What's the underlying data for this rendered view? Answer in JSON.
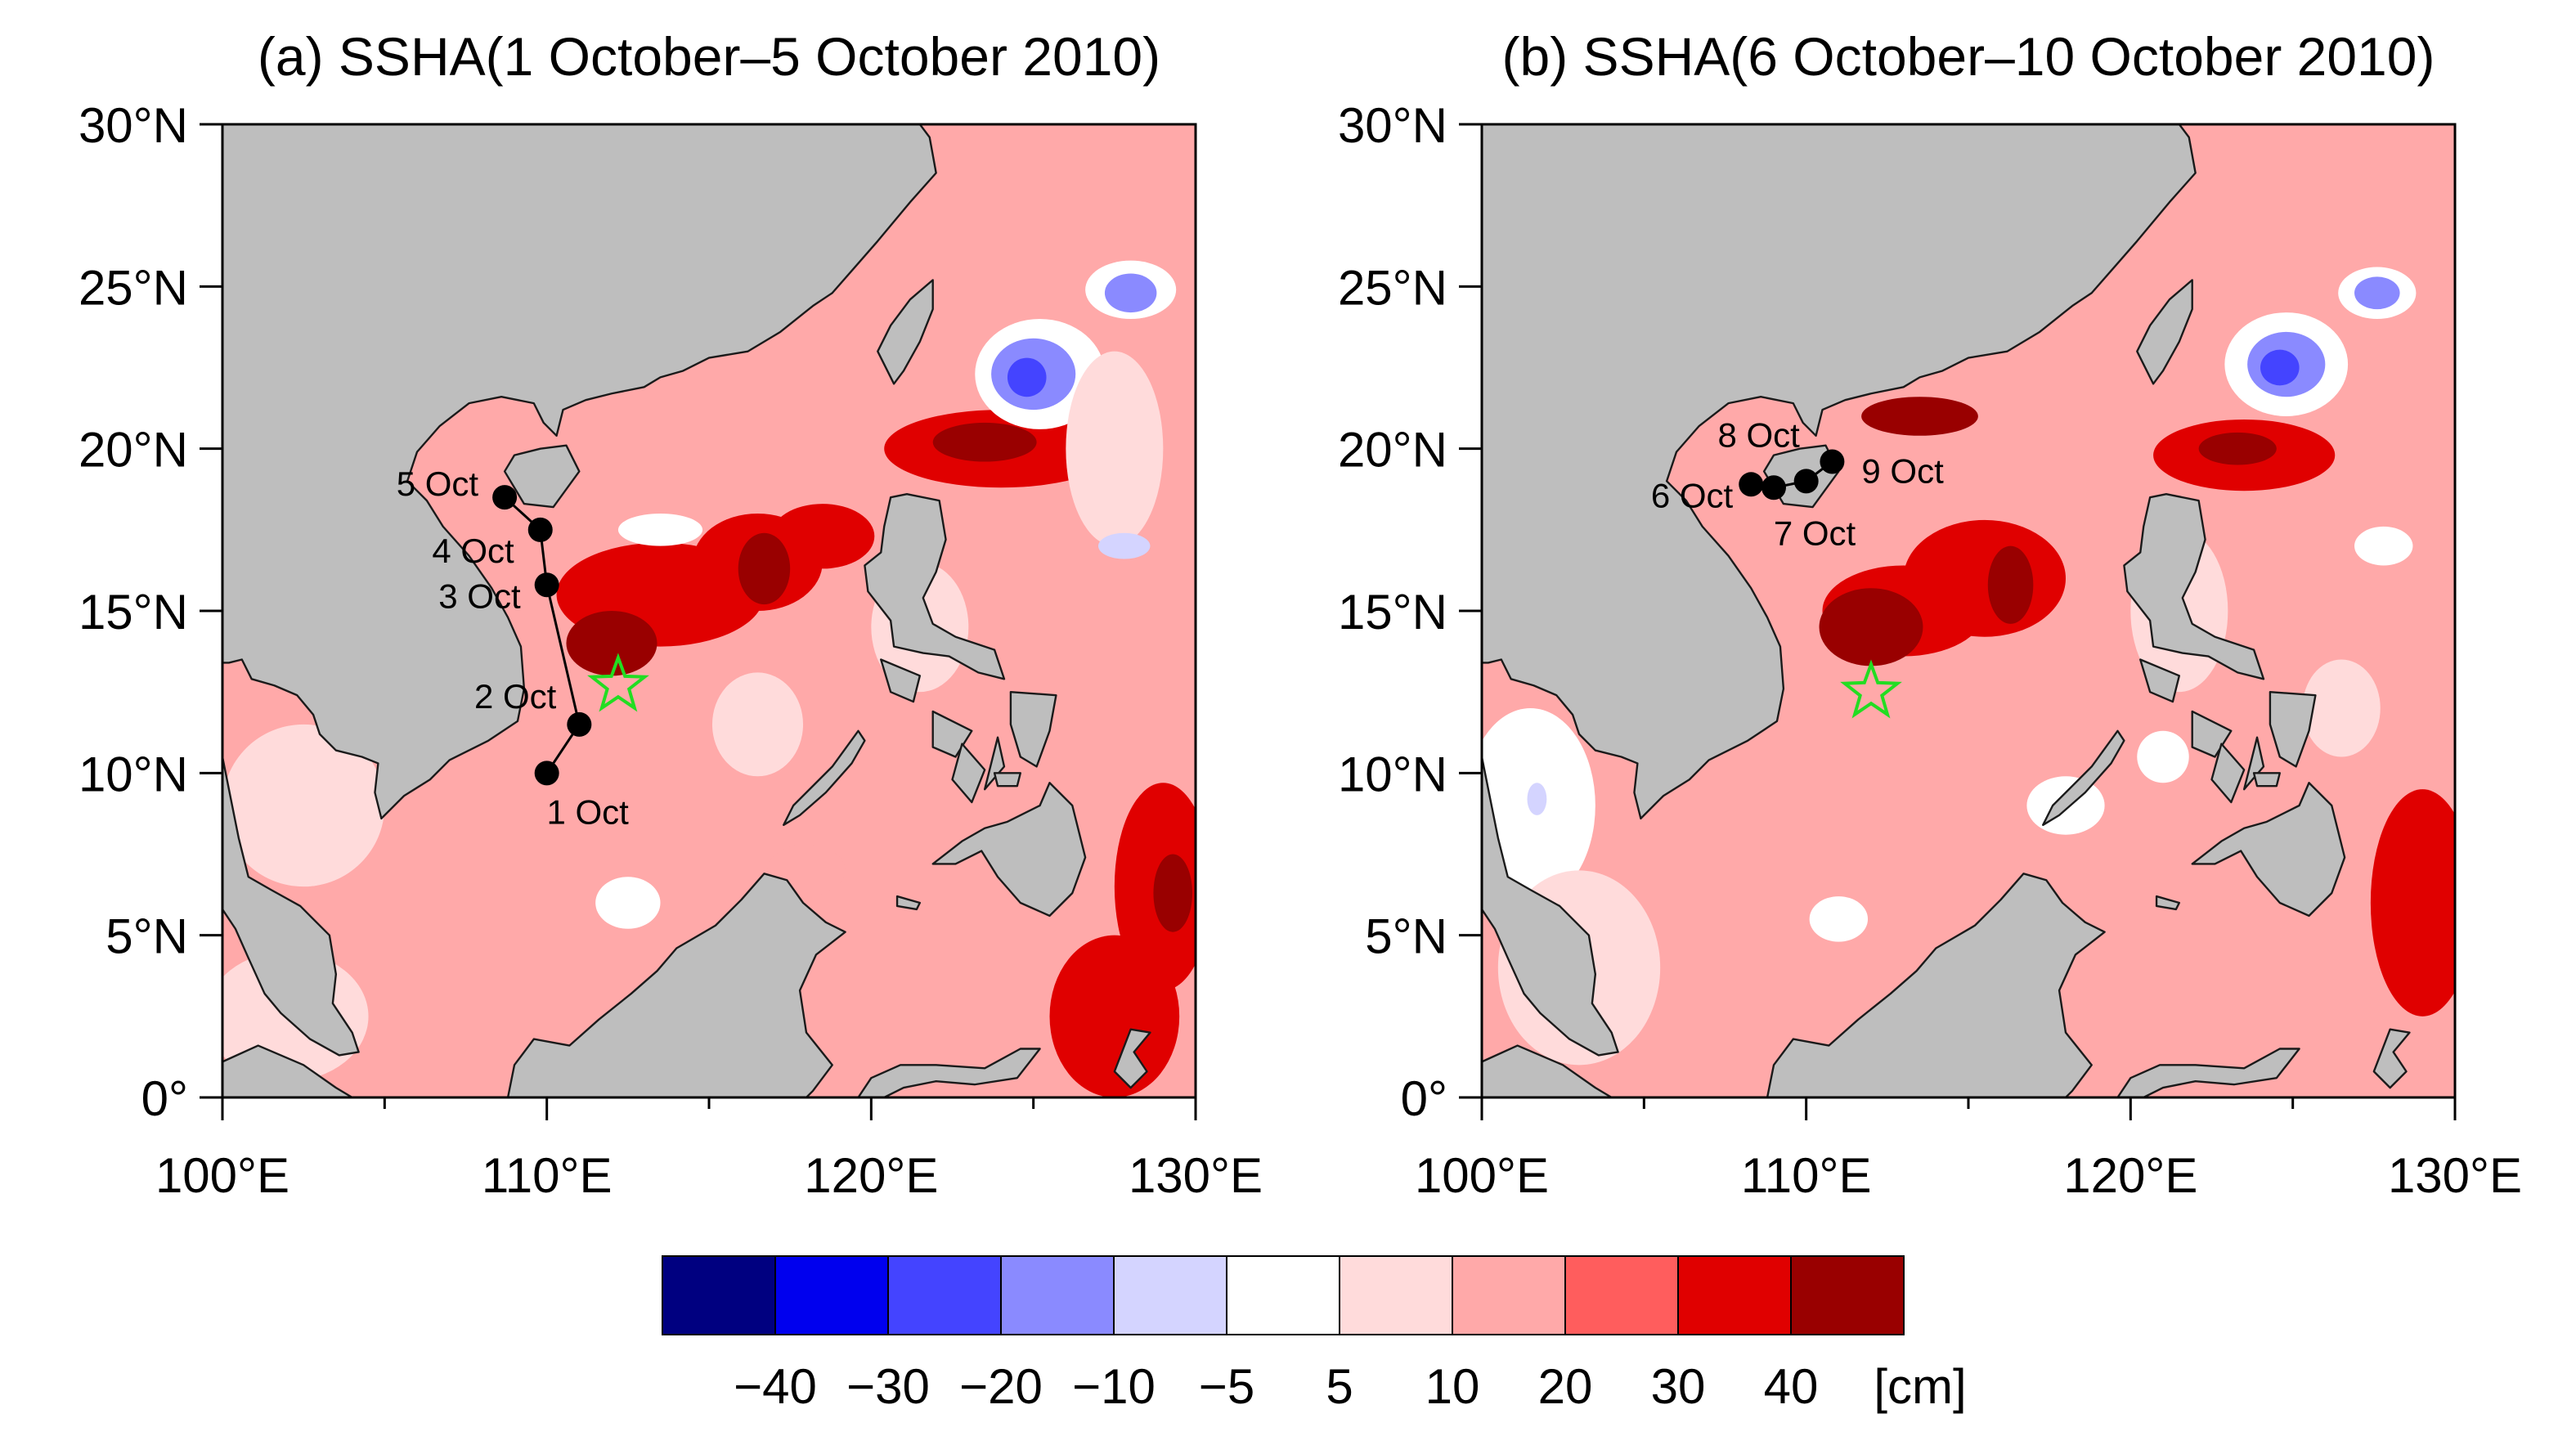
{
  "figure": {
    "colors": {
      "land": "#bebebe",
      "coast": "#1a1a1a",
      "track": "#000000",
      "star": "#22dd22",
      "axis": "#000000"
    }
  },
  "chart_data": {
    "type": "heatmap",
    "variable": "SSHA",
    "units": "[cm]",
    "colorbar": {
      "levels": [
        "−40",
        "−30",
        "−20",
        "−10",
        "−5",
        "5",
        "10",
        "20",
        "30",
        "40"
      ],
      "level_values": [
        -40,
        -30,
        -20,
        -10,
        -5,
        5,
        10,
        20,
        30,
        40
      ],
      "colors": [
        "#000080",
        "#0000ee",
        "#4444ff",
        "#8a8aff",
        "#d4d4ff",
        "#ffffff",
        "#ffdbdb",
        "#ffa9a9",
        "#ff5d5d",
        "#e00000",
        "#990000"
      ],
      "units_label": "[cm]"
    },
    "panels": [
      {
        "title": "(a) SSHA(1 October–5 October 2010)",
        "lon_range": [
          100,
          130
        ],
        "lat_range": [
          0,
          30
        ],
        "x_ticks": [
          "100°E",
          "110°E",
          "120°E",
          "130°E"
        ],
        "x_tick_values": [
          100,
          110,
          120,
          130
        ],
        "y_ticks": [
          "0°",
          "5°N",
          "10°N",
          "15°N",
          "20°N",
          "25°N",
          "30°N"
        ],
        "y_tick_values": [
          0,
          5,
          10,
          15,
          20,
          25,
          30
        ],
        "track": [
          {
            "label": "1 Oct",
            "lon": 110.0,
            "lat": 10.0
          },
          {
            "label": "2 Oct",
            "lon": 111.0,
            "lat": 11.5
          },
          {
            "label": "3 Oct",
            "lon": 110.0,
            "lat": 15.8
          },
          {
            "label": "4 Oct",
            "lon": 109.8,
            "lat": 17.5
          },
          {
            "label": "5 Oct",
            "lon": 108.7,
            "lat": 18.5
          }
        ],
        "star": {
          "lon": 112.2,
          "lat": 12.7
        },
        "blobs": [
          {
            "lon": 113.5,
            "lat": 15.5,
            "rx": 3.2,
            "ry": 1.6,
            "level": 9
          },
          {
            "lon": 116.5,
            "lat": 16.5,
            "rx": 2.0,
            "ry": 1.5,
            "level": 9
          },
          {
            "lon": 118.5,
            "lat": 17.3,
            "rx": 1.6,
            "ry": 1.0,
            "level": 9
          },
          {
            "lon": 124.0,
            "lat": 20.0,
            "rx": 3.6,
            "ry": 1.2,
            "level": 9
          },
          {
            "lon": 112.0,
            "lat": 14.0,
            "rx": 1.4,
            "ry": 1.0,
            "level": 10
          },
          {
            "lon": 116.7,
            "lat": 16.3,
            "rx": 0.8,
            "ry": 1.1,
            "level": 10
          },
          {
            "lon": 123.5,
            "lat": 20.2,
            "rx": 1.6,
            "ry": 0.6,
            "level": 10
          },
          {
            "lon": 129.0,
            "lat": 6.5,
            "rx": 1.5,
            "ry": 3.2,
            "level": 9
          },
          {
            "lon": 129.3,
            "lat": 6.3,
            "rx": 0.6,
            "ry": 1.2,
            "level": 10
          },
          {
            "lon": 127.5,
            "lat": 2.5,
            "rx": 2.0,
            "ry": 2.5,
            "level": 9
          },
          {
            "lon": 125.2,
            "lat": 22.3,
            "rx": 2.0,
            "ry": 1.7,
            "level": 5
          },
          {
            "lon": 125.0,
            "lat": 22.3,
            "rx": 1.3,
            "ry": 1.1,
            "level": 3
          },
          {
            "lon": 124.8,
            "lat": 22.2,
            "rx": 0.6,
            "ry": 0.6,
            "level": 2
          },
          {
            "lon": 128.0,
            "lat": 24.9,
            "rx": 1.4,
            "ry": 0.9,
            "level": 5
          },
          {
            "lon": 128.0,
            "lat": 24.8,
            "rx": 0.8,
            "ry": 0.6,
            "level": 3
          },
          {
            "lon": 113.5,
            "lat": 17.5,
            "rx": 1.3,
            "ry": 0.5,
            "level": 5
          },
          {
            "lon": 116.5,
            "lat": 11.5,
            "rx": 1.4,
            "ry": 1.6,
            "level": 6
          },
          {
            "lon": 112.5,
            "lat": 6.0,
            "rx": 1.0,
            "ry": 0.8,
            "level": 5
          },
          {
            "lon": 118.0,
            "lat": 7.0,
            "rx": 1.2,
            "ry": 0.8,
            "level": 7
          },
          {
            "lon": 102.5,
            "lat": 9.0,
            "rx": 2.5,
            "ry": 2.5,
            "level": 6
          },
          {
            "lon": 102.0,
            "lat": 2.5,
            "rx": 2.5,
            "ry": 2.0,
            "level": 6
          },
          {
            "lon": 121.5,
            "lat": 14.5,
            "rx": 1.5,
            "ry": 2.0,
            "level": 6
          },
          {
            "lon": 127.5,
            "lat": 20.0,
            "rx": 1.5,
            "ry": 3.0,
            "level": 6
          },
          {
            "lon": 127.8,
            "lat": 17.0,
            "rx": 0.8,
            "ry": 0.4,
            "level": 4
          }
        ]
      },
      {
        "title": "(b) SSHA(6 October–10 October 2010)",
        "lon_range": [
          100,
          130
        ],
        "lat_range": [
          0,
          30
        ],
        "x_ticks": [
          "100°E",
          "110°E",
          "120°E",
          "130°E"
        ],
        "x_tick_values": [
          100,
          110,
          120,
          130
        ],
        "y_ticks": [
          "0°",
          "5°N",
          "10°N",
          "15°N",
          "20°N",
          "25°N",
          "30°N"
        ],
        "y_tick_values": [
          0,
          5,
          10,
          15,
          20,
          25,
          30
        ],
        "track": [
          {
            "label": "6 Oct",
            "lon": 108.3,
            "lat": 18.9
          },
          {
            "label": "7 Oct",
            "lon": 109.0,
            "lat": 18.8
          },
          {
            "label": "8 Oct",
            "lon": 110.0,
            "lat": 19.0
          },
          {
            "label": "9 Oct",
            "lon": 110.8,
            "lat": 19.6
          }
        ],
        "star": {
          "lon": 112.0,
          "lat": 12.5
        },
        "blobs": [
          {
            "lon": 113.0,
            "lat": 15.0,
            "rx": 2.5,
            "ry": 1.4,
            "level": 9
          },
          {
            "lon": 115.5,
            "lat": 16.0,
            "rx": 2.5,
            "ry": 1.8,
            "level": 9
          },
          {
            "lon": 123.5,
            "lat": 19.8,
            "rx": 2.8,
            "ry": 1.1,
            "level": 9
          },
          {
            "lon": 112.0,
            "lat": 14.5,
            "rx": 1.6,
            "ry": 1.2,
            "level": 10
          },
          {
            "lon": 116.3,
            "lat": 15.8,
            "rx": 0.7,
            "ry": 1.2,
            "level": 10
          },
          {
            "lon": 123.3,
            "lat": 20.0,
            "rx": 1.2,
            "ry": 0.5,
            "level": 10
          },
          {
            "lon": 113.5,
            "lat": 21.0,
            "rx": 1.8,
            "ry": 0.6,
            "level": 10
          },
          {
            "lon": 129.0,
            "lat": 6.0,
            "rx": 1.6,
            "ry": 3.5,
            "level": 9
          },
          {
            "lon": 124.8,
            "lat": 22.6,
            "rx": 1.9,
            "ry": 1.6,
            "level": 5
          },
          {
            "lon": 124.8,
            "lat": 22.6,
            "rx": 1.2,
            "ry": 1.0,
            "level": 3
          },
          {
            "lon": 124.6,
            "lat": 22.5,
            "rx": 0.6,
            "ry": 0.55,
            "level": 2
          },
          {
            "lon": 127.6,
            "lat": 24.8,
            "rx": 1.2,
            "ry": 0.8,
            "level": 5
          },
          {
            "lon": 127.6,
            "lat": 24.8,
            "rx": 0.7,
            "ry": 0.5,
            "level": 3
          },
          {
            "lon": 101.5,
            "lat": 9.0,
            "rx": 2.0,
            "ry": 3.0,
            "level": 5
          },
          {
            "lon": 101.7,
            "lat": 9.2,
            "rx": 0.3,
            "ry": 0.5,
            "level": 4
          },
          {
            "lon": 111.0,
            "lat": 5.5,
            "rx": 0.9,
            "ry": 0.7,
            "level": 5
          },
          {
            "lon": 118.0,
            "lat": 9.0,
            "rx": 1.2,
            "ry": 0.9,
            "level": 5
          },
          {
            "lon": 103.0,
            "lat": 4.0,
            "rx": 2.5,
            "ry": 3.0,
            "level": 6
          },
          {
            "lon": 121.5,
            "lat": 15.0,
            "rx": 1.5,
            "ry": 2.5,
            "level": 6
          },
          {
            "lon": 126.5,
            "lat": 12.0,
            "rx": 1.2,
            "ry": 1.5,
            "level": 6
          },
          {
            "lon": 127.8,
            "lat": 17.0,
            "rx": 0.9,
            "ry": 0.6,
            "level": 5
          },
          {
            "lon": 121.0,
            "lat": 10.5,
            "rx": 0.8,
            "ry": 0.8,
            "level": 5
          }
        ]
      }
    ]
  }
}
